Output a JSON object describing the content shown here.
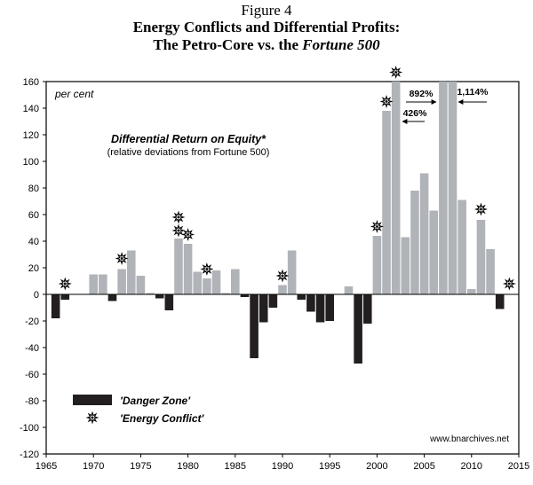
{
  "figure": {
    "label": "Figure 4",
    "title": "Energy Conflicts and Differential Profits:",
    "subtitle_prefix": "The Petro-Core vs. the ",
    "subtitle_italic": "Fortune 500"
  },
  "chart_data": {
    "type": "bar",
    "title": "Differential Return on Equity*",
    "subtitle": "(relative deviations from Fortune 500)",
    "ylabel": "per cent",
    "xlabel": "",
    "xlim": [
      1965,
      2015
    ],
    "ylim": [
      -120,
      160
    ],
    "x_ticks": [
      1965,
      1970,
      1975,
      1980,
      1985,
      1990,
      1995,
      2000,
      2005,
      2010,
      2015
    ],
    "y_ticks": [
      -120,
      -100,
      -80,
      -60,
      -40,
      -20,
      0,
      20,
      40,
      60,
      80,
      100,
      120,
      140,
      160
    ],
    "y_tick_labels": [
      "-120",
      "-100",
      "-80",
      "-60",
      "-40",
      "-20",
      "0",
      "20",
      "40",
      "60",
      "80",
      "100",
      "120",
      "140",
      "160"
    ],
    "positive_color": "#b0b3b8",
    "negative_color": "#231f20",
    "series": [
      {
        "name": "Differential Return on Equity",
        "points": [
          {
            "year": 1966,
            "value": -18
          },
          {
            "year": 1967,
            "value": -4
          },
          {
            "year": 1970,
            "value": 15
          },
          {
            "year": 1971,
            "value": 15
          },
          {
            "year": 1972,
            "value": -5
          },
          {
            "year": 1973,
            "value": 19
          },
          {
            "year": 1974,
            "value": 33
          },
          {
            "year": 1975,
            "value": 14
          },
          {
            "year": 1976,
            "value": 1
          },
          {
            "year": 1977,
            "value": -3
          },
          {
            "year": 1978,
            "value": -12
          },
          {
            "year": 1979,
            "value": 42
          },
          {
            "year": 1980,
            "value": 38
          },
          {
            "year": 1981,
            "value": 17
          },
          {
            "year": 1982,
            "value": 12
          },
          {
            "year": 1983,
            "value": 18
          },
          {
            "year": 1984,
            "value": 1
          },
          {
            "year": 1985,
            "value": 19
          },
          {
            "year": 1986,
            "value": -2
          },
          {
            "year": 1987,
            "value": -48
          },
          {
            "year": 1988,
            "value": -21
          },
          {
            "year": 1989,
            "value": -10
          },
          {
            "year": 1990,
            "value": 7
          },
          {
            "year": 1991,
            "value": 33
          },
          {
            "year": 1992,
            "value": -4
          },
          {
            "year": 1993,
            "value": -13
          },
          {
            "year": 1994,
            "value": -21
          },
          {
            "year": 1995,
            "value": -20
          },
          {
            "year": 1997,
            "value": 6
          },
          {
            "year": 1998,
            "value": -52
          },
          {
            "year": 1999,
            "value": -22
          },
          {
            "year": 2000,
            "value": 44
          },
          {
            "year": 2001,
            "value": 138
          },
          {
            "year": 2002,
            "value": 160
          },
          {
            "year": 2003,
            "value": 43
          },
          {
            "year": 2004,
            "value": 78
          },
          {
            "year": 2005,
            "value": 91
          },
          {
            "year": 2006,
            "value": 63
          },
          {
            "year": 2007,
            "value": 160
          },
          {
            "year": 2008,
            "value": 160
          },
          {
            "year": 2009,
            "value": 71
          },
          {
            "year": 2010,
            "value": 4
          },
          {
            "year": 2011,
            "value": 56
          },
          {
            "year": 2012,
            "value": 34
          },
          {
            "year": 2013,
            "value": -11
          }
        ]
      }
    ],
    "energy_conflicts": [
      {
        "year": 1967,
        "value": 8
      },
      {
        "year": 1973,
        "value": 27
      },
      {
        "year": 1979,
        "value": 58
      },
      {
        "year": 1979,
        "value": 48
      },
      {
        "year": 1980,
        "value": 45
      },
      {
        "year": 1982,
        "value": 19
      },
      {
        "year": 1990,
        "value": 14
      },
      {
        "year": 2000,
        "value": 51
      },
      {
        "year": 2001,
        "value": 145
      },
      {
        "year": 2002,
        "value": 167
      },
      {
        "year": 2011,
        "value": 64
      },
      {
        "year": 2014,
        "value": 8
      }
    ],
    "bar_annotations": [
      {
        "text": "892%",
        "year": 2005
      },
      {
        "text": "426%",
        "year": 2004
      },
      {
        "text": "1,114%",
        "year": 2010
      }
    ],
    "legend": {
      "position": "bottom-left",
      "danger_zone_label": "'Danger Zone'",
      "energy_conflict_label": "'Energy Conflict'"
    },
    "source": "www.bnarchives.net"
  }
}
